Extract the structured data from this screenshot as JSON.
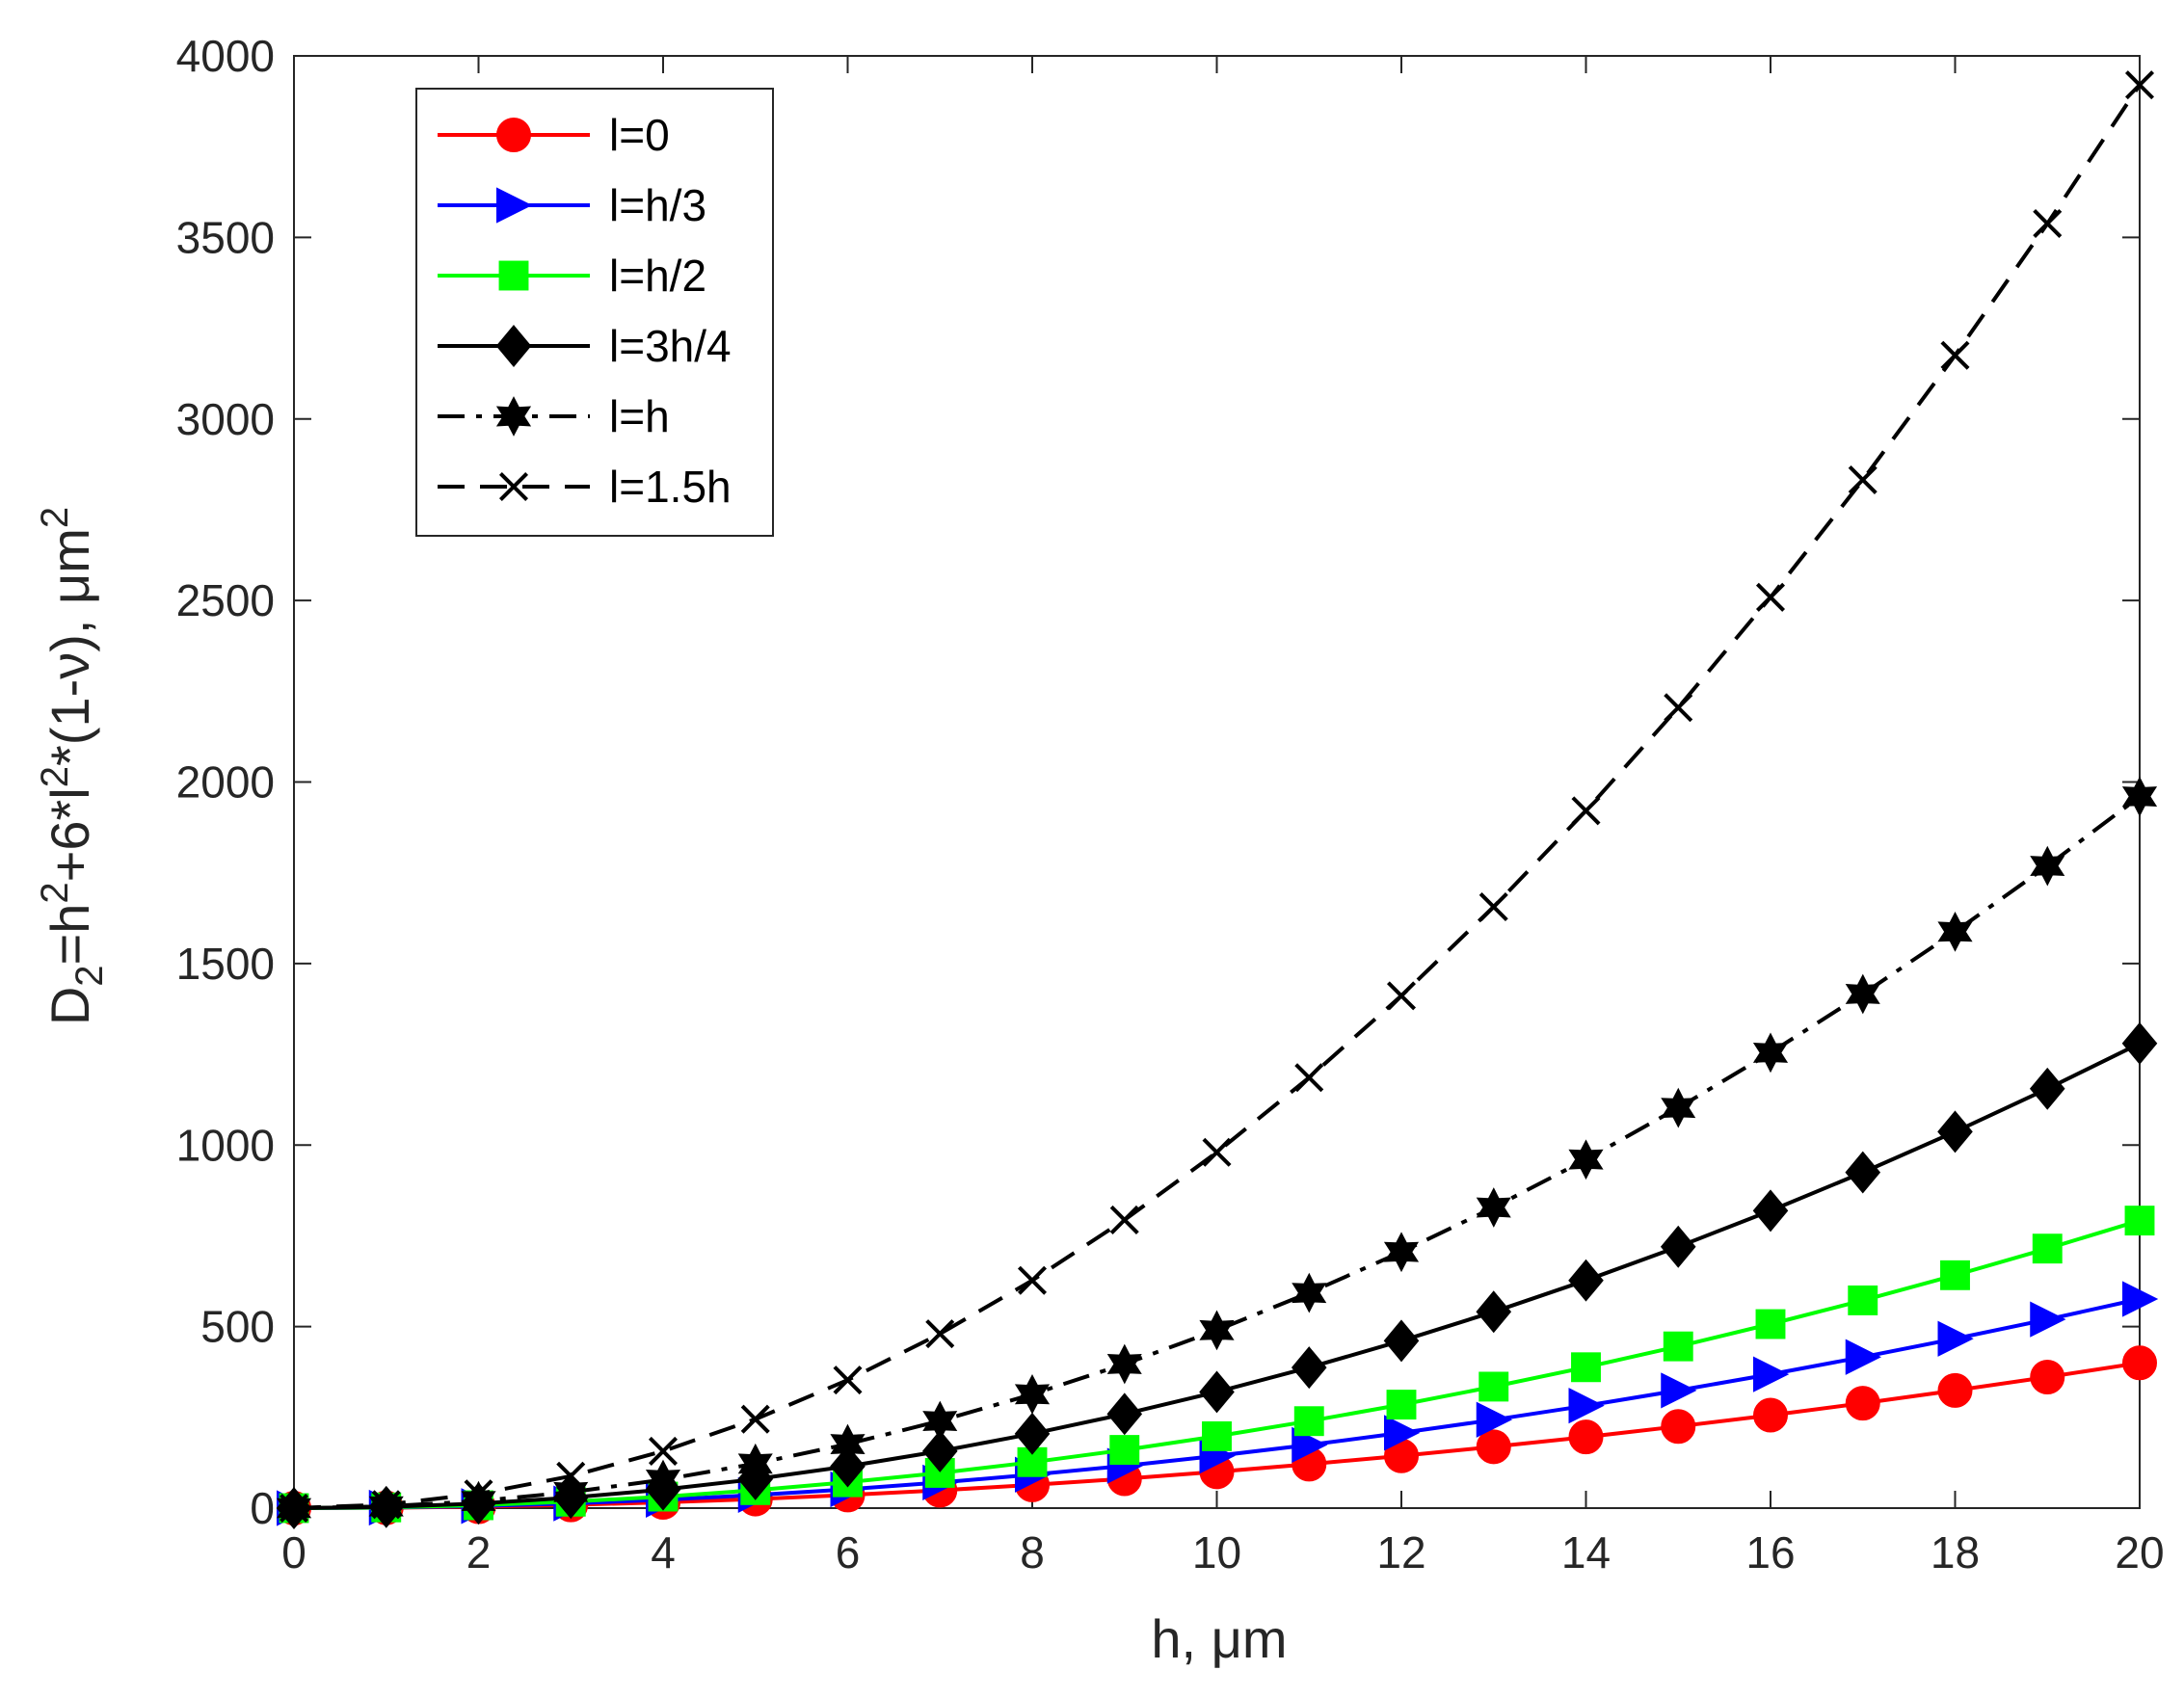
{
  "chart_data": {
    "type": "line",
    "title": "",
    "xlabel": "h, μm",
    "ylabel_parts": {
      "main": "D",
      "sub": "2",
      "eq1": "=h",
      "sup1": "2",
      "eq2": "+6*l",
      "sup2": "2",
      "eq3": "*(1-ν), μm",
      "sup3": "2"
    },
    "xlim": [
      0,
      20
    ],
    "ylim": [
      0,
      4000
    ],
    "xticks": [
      0,
      2,
      4,
      6,
      8,
      10,
      12,
      14,
      16,
      18,
      20
    ],
    "yticks": [
      0,
      500,
      1000,
      1500,
      2000,
      2500,
      3000,
      3500,
      4000
    ],
    "x": [
      0,
      1,
      2,
      3,
      4,
      5,
      6,
      7,
      8,
      9,
      10,
      11,
      12,
      13,
      14,
      15,
      16,
      17,
      18,
      19,
      20
    ],
    "legend_position": "top-left",
    "series": [
      {
        "name": "l=0",
        "color": "#ff0000",
        "line": "solid",
        "marker": "circle",
        "values": [
          0,
          1,
          4,
          9,
          16,
          25,
          36,
          49,
          64,
          81,
          100,
          121,
          144,
          169,
          196,
          225,
          256,
          289,
          324,
          361,
          400
        ]
      },
      {
        "name": "l=h/3",
        "color": "#0000ff",
        "line": "solid",
        "marker": "triangle-right",
        "values": [
          0,
          1.44,
          5.76,
          12.96,
          23,
          36,
          51.8,
          70.6,
          92.2,
          116.6,
          144,
          174.2,
          207.4,
          243.4,
          282.2,
          324,
          368.6,
          416.2,
          466.6,
          519.8,
          576
        ]
      },
      {
        "name": "l=h/2",
        "color": "#00ff00",
        "line": "solid",
        "marker": "square",
        "values": [
          0,
          1.98,
          7.92,
          17.8,
          31.7,
          49.5,
          71.3,
          97,
          126.7,
          160.4,
          198,
          239.6,
          285.1,
          334.6,
          388.1,
          445.5,
          506.9,
          572.2,
          641.5,
          714.8,
          792
        ]
      },
      {
        "name": "l=3h/4",
        "color": "#000000",
        "line": "solid",
        "marker": "diamond",
        "values": [
          0,
          3.2,
          12.8,
          28.8,
          51.2,
          80,
          115.2,
          156.8,
          204.8,
          259.2,
          320,
          387.2,
          460.8,
          540.8,
          627.2,
          720,
          819.2,
          924.8,
          1036.8,
          1155.2,
          1280
        ]
      },
      {
        "name": "l=h",
        "color": "#000000",
        "line": "dashdot",
        "marker": "hexagram",
        "values": [
          0,
          4.9,
          19.6,
          44.1,
          78.4,
          122.5,
          176.4,
          240.1,
          313.6,
          396.9,
          490,
          592.9,
          705.6,
          828.1,
          960.4,
          1102.5,
          1254.4,
          1416.1,
          1587.6,
          1768.9,
          1960
        ]
      },
      {
        "name": "l=1.5h",
        "color": "#000000",
        "line": "dashed",
        "marker": "x",
        "values": [
          0,
          9.8,
          39.2,
          88.2,
          156.8,
          245,
          352.8,
          480.2,
          627.2,
          793.8,
          980,
          1185.8,
          1411.2,
          1656.2,
          1920.8,
          2205,
          2508.8,
          2832.2,
          3175.2,
          3538.2,
          3920
        ]
      }
    ]
  }
}
